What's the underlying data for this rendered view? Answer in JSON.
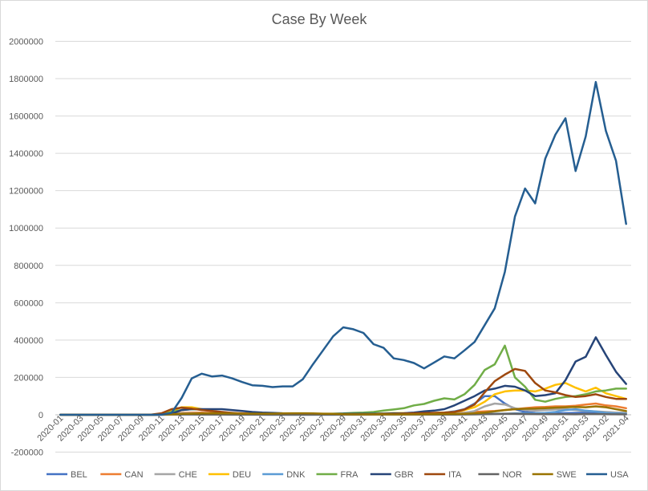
{
  "chart_data": {
    "type": "line",
    "title": "Case By Week",
    "xlabel": "",
    "ylabel": "",
    "ylim": [
      -200000,
      2000000
    ],
    "yticks": [
      -200000,
      0,
      200000,
      400000,
      600000,
      800000,
      1000000,
      1200000,
      1400000,
      1600000,
      1800000,
      2000000
    ],
    "grid": "horizontal",
    "legend_position": "bottom",
    "x": [
      "2020-01",
      "2020-02",
      "2020-03",
      "2020-04",
      "2020-05",
      "2020-06",
      "2020-07",
      "2020-08",
      "2020-09",
      "2020-10",
      "2020-11",
      "2020-12",
      "2020-13",
      "2020-14",
      "2020-15",
      "2020-16",
      "2020-17",
      "2020-18",
      "2020-19",
      "2020-20",
      "2020-21",
      "2020-22",
      "2020-23",
      "2020-24",
      "2020-25",
      "2020-26",
      "2020-27",
      "2020-28",
      "2020-29",
      "2020-30",
      "2020-31",
      "2020-32",
      "2020-33",
      "2020-34",
      "2020-35",
      "2020-36",
      "2020-37",
      "2020-38",
      "2020-39",
      "2020-40",
      "2020-41",
      "2020-42",
      "2020-43",
      "2020-44",
      "2020-45",
      "2020-46",
      "2020-47",
      "2020-48",
      "2020-49",
      "2020-50",
      "2020-51",
      "2020-52",
      "2020-53",
      "2021-01",
      "2021-02",
      "2021-03",
      "2021-04"
    ],
    "x_tick_labels": [
      "2020-01",
      "2020-03",
      "2020-05",
      "2020-07",
      "2020-09",
      "2020-11",
      "2020-13",
      "2020-15",
      "2020-17",
      "2020-19",
      "2020-21",
      "2020-23",
      "2020-25",
      "2020-27",
      "2020-29",
      "2020-31",
      "2020-33",
      "2020-35",
      "2020-37",
      "2020-39",
      "2020-41",
      "2020-43",
      "2020-45",
      "2020-47",
      "2020-49",
      "2020-51",
      "2020-53",
      "2021-02",
      "2021-04"
    ],
    "series": [
      {
        "name": "BEL",
        "color": "#4472c4",
        "values": [
          0,
          0,
          0,
          0,
          0,
          0,
          0,
          0,
          0,
          0,
          0,
          3000,
          8000,
          9000,
          9000,
          7000,
          6000,
          5000,
          3000,
          2000,
          1500,
          1200,
          1000,
          800,
          800,
          900,
          1000,
          2000,
          3000,
          4000,
          4000,
          3500,
          3000,
          3000,
          3500,
          4000,
          6000,
          9000,
          12000,
          18000,
          30000,
          60000,
          100000,
          100000,
          60000,
          30000,
          15000,
          10000,
          8000,
          7000,
          9000,
          10000,
          12000,
          13000,
          12000,
          11000,
          10000
        ]
      },
      {
        "name": "CAN",
        "color": "#ed7d31",
        "values": [
          0,
          0,
          0,
          0,
          0,
          0,
          0,
          0,
          0,
          0,
          1000,
          5000,
          10000,
          11000,
          11000,
          10000,
          10000,
          9000,
          8000,
          7000,
          5000,
          4000,
          3000,
          2500,
          2500,
          2500,
          2500,
          2500,
          3000,
          3000,
          3000,
          2500,
          2500,
          2500,
          3000,
          4000,
          5000,
          7000,
          9000,
          10000,
          12000,
          15000,
          18000,
          20000,
          25000,
          30000,
          35000,
          40000,
          42000,
          45000,
          45000,
          48000,
          55000,
          60000,
          50000,
          45000,
          35000
        ]
      },
      {
        "name": "CHE",
        "color": "#a5a5a5",
        "values": [
          0,
          0,
          0,
          0,
          0,
          0,
          0,
          0,
          0,
          0,
          1000,
          5000,
          8000,
          8000,
          7000,
          5000,
          3000,
          2000,
          1000,
          500,
          300,
          300,
          300,
          300,
          300,
          500,
          700,
          800,
          1000,
          1200,
          1300,
          1400,
          1400,
          1500,
          1500,
          2000,
          3000,
          4000,
          5000,
          6000,
          10000,
          20000,
          45000,
          60000,
          55000,
          35000,
          25000,
          22000,
          25000,
          28000,
          30000,
          25000,
          20000,
          18000,
          15000,
          12000,
          10000
        ]
      },
      {
        "name": "DEU",
        "color": "#ffc000",
        "values": [
          0,
          0,
          0,
          0,
          0,
          0,
          0,
          0,
          0,
          0,
          3000,
          20000,
          40000,
          40000,
          30000,
          20000,
          12000,
          8000,
          5000,
          4000,
          3000,
          2500,
          2500,
          2500,
          3000,
          3000,
          3000,
          3500,
          4000,
          5000,
          6000,
          6000,
          7000,
          9000,
          9000,
          9000,
          9000,
          10000,
          12000,
          15000,
          25000,
          40000,
          70000,
          110000,
          125000,
          130000,
          130000,
          125000,
          140000,
          160000,
          170000,
          145000,
          125000,
          145000,
          115000,
          100000,
          85000
        ]
      },
      {
        "name": "DNK",
        "color": "#5b9bd5",
        "values": [
          0,
          0,
          0,
          0,
          0,
          0,
          0,
          0,
          0,
          0,
          0,
          1000,
          1500,
          2000,
          2000,
          1500,
          1200,
          1000,
          800,
          600,
          500,
          400,
          300,
          300,
          300,
          300,
          300,
          300,
          500,
          800,
          1000,
          1000,
          1000,
          1000,
          1000,
          1200,
          1500,
          2000,
          3000,
          3000,
          3000,
          3000,
          4000,
          5000,
          6000,
          7000,
          7000,
          8000,
          10000,
          15000,
          25000,
          30000,
          22000,
          17000,
          10000,
          7000,
          5000
        ]
      },
      {
        "name": "FRA",
        "color": "#70ad47",
        "values": [
          0,
          0,
          0,
          0,
          0,
          0,
          0,
          0,
          0,
          0,
          2000,
          15000,
          25000,
          30000,
          28000,
          20000,
          12000,
          8000,
          5000,
          4000,
          3000,
          3000,
          3000,
          3000,
          3000,
          4000,
          5000,
          6000,
          7000,
          10000,
          12000,
          15000,
          22000,
          28000,
          35000,
          50000,
          58000,
          75000,
          88000,
          82000,
          110000,
          160000,
          240000,
          270000,
          370000,
          200000,
          150000,
          80000,
          70000,
          85000,
          95000,
          100000,
          110000,
          125000,
          130000,
          140000,
          140000
        ]
      },
      {
        "name": "GBR",
        "color": "#264478",
        "values": [
          0,
          0,
          0,
          0,
          0,
          0,
          0,
          0,
          0,
          0,
          1000,
          5000,
          25000,
          30000,
          30000,
          30000,
          30000,
          25000,
          20000,
          15000,
          12000,
          10000,
          8000,
          7000,
          6000,
          5000,
          5000,
          5000,
          5000,
          5000,
          5000,
          5000,
          6000,
          7000,
          8000,
          12000,
          18000,
          22000,
          30000,
          50000,
          75000,
          100000,
          130000,
          140000,
          155000,
          150000,
          130000,
          100000,
          105000,
          115000,
          185000,
          285000,
          310000,
          415000,
          320000,
          230000,
          165000
        ]
      },
      {
        "name": "ITA",
        "color": "#9e480e",
        "values": [
          0,
          0,
          0,
          0,
          0,
          0,
          0,
          0,
          0,
          1000,
          8000,
          30000,
          38000,
          33000,
          25000,
          20000,
          15000,
          10000,
          6000,
          4000,
          3000,
          2000,
          2000,
          2000,
          2000,
          2000,
          2000,
          2000,
          2000,
          2000,
          2000,
          2500,
          3000,
          4000,
          6000,
          8000,
          9000,
          10000,
          11000,
          15000,
          28000,
          55000,
          120000,
          180000,
          215000,
          245000,
          235000,
          170000,
          130000,
          120000,
          105000,
          95000,
          100000,
          110000,
          95000,
          85000,
          85000
        ]
      },
      {
        "name": "NOR",
        "color": "#636363",
        "values": [
          0,
          0,
          0,
          0,
          0,
          0,
          0,
          0,
          0,
          0,
          500,
          1000,
          1500,
          1500,
          1000,
          700,
          500,
          300,
          200,
          100,
          100,
          100,
          100,
          100,
          100,
          100,
          100,
          100,
          200,
          300,
          400,
          500,
          500,
          500,
          600,
          700,
          800,
          1000,
          1200,
          1200,
          1500,
          2000,
          3000,
          4000,
          5000,
          5000,
          4000,
          3500,
          3000,
          3000,
          3000,
          2500,
          3500,
          4000,
          3000,
          2500,
          2000
        ]
      },
      {
        "name": "SWE",
        "color": "#997300",
        "values": [
          0,
          0,
          0,
          0,
          0,
          0,
          0,
          0,
          0,
          0,
          500,
          2000,
          5000,
          6000,
          7000,
          7000,
          7000,
          7000,
          6000,
          6000,
          6000,
          6000,
          7000,
          8000,
          8000,
          7000,
          6000,
          5000,
          3000,
          2000,
          2000,
          2000,
          1800,
          2000,
          2000,
          2500,
          3000,
          3500,
          4000,
          4500,
          5000,
          8000,
          12000,
          18000,
          25000,
          30000,
          32000,
          33000,
          35000,
          38000,
          40000,
          42000,
          40000,
          45000,
          40000,
          30000,
          20000
        ]
      },
      {
        "name": "USA",
        "color": "#255e91",
        "values": [
          0,
          0,
          0,
          0,
          0,
          0,
          0,
          0,
          0,
          0,
          500,
          10000,
          90000,
          195000,
          220000,
          205000,
          210000,
          195000,
          175000,
          158000,
          155000,
          148000,
          152000,
          152000,
          190000,
          270000,
          345000,
          420000,
          468000,
          458000,
          438000,
          378000,
          358000,
          302000,
          293000,
          277000,
          248000,
          280000,
          312000,
          302000,
          345000,
          390000,
          480000,
          570000,
          765000,
          1062000,
          1212000,
          1132000,
          1372000,
          1500000,
          1588000,
          1305000,
          1490000,
          1782000,
          1520000,
          1360000,
          1022000
        ]
      }
    ]
  }
}
